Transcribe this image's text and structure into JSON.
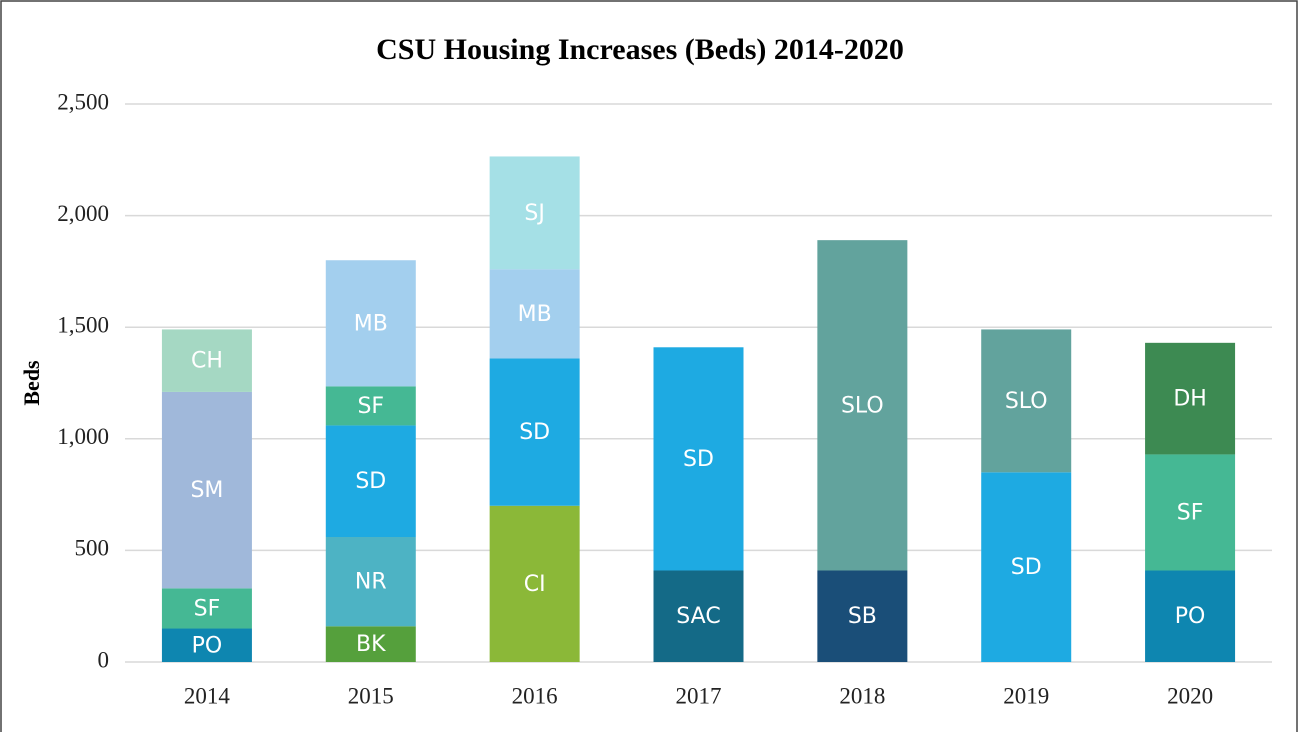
{
  "chart_data": {
    "type": "stacked-bar",
    "title": "CSU Housing Increases  (Beds) 2014-2020",
    "y_label": "Beds",
    "categories": [
      "2014",
      "2015",
      "2016",
      "2017",
      "2018",
      "2019",
      "2020"
    ],
    "bars": [
      {
        "segments": [
          {
            "name": "PO",
            "value": 150,
            "color": "#0e86b0"
          },
          {
            "name": "SF",
            "value": 180,
            "color": "#45b894"
          },
          {
            "name": "SM",
            "value": 880,
            "color": "#a0b8da"
          },
          {
            "name": "CH",
            "value": 280,
            "color": "#a5d8c3"
          }
        ]
      },
      {
        "segments": [
          {
            "name": "BK",
            "value": 160,
            "color": "#55a03c"
          },
          {
            "name": "NR",
            "value": 400,
            "color": "#4db3c4"
          },
          {
            "name": "SD",
            "value": 500,
            "color": "#1eaae2"
          },
          {
            "name": "SF",
            "value": 175,
            "color": "#45b894"
          },
          {
            "name": "MB",
            "value": 565,
            "color": "#a3cfee"
          }
        ]
      },
      {
        "segments": [
          {
            "name": "CI",
            "value": 700,
            "color": "#8bb838"
          },
          {
            "name": "SD",
            "value": 660,
            "color": "#1eaae2"
          },
          {
            "name": "MB",
            "value": 400,
            "color": "#a3cfee"
          },
          {
            "name": "SJ",
            "value": 505,
            "color": "#a5e0e6"
          }
        ]
      },
      {
        "segments": [
          {
            "name": "SAC",
            "value": 410,
            "color": "#146a87"
          },
          {
            "name": "SD",
            "value": 1000,
            "color": "#1eaae2"
          }
        ]
      },
      {
        "segments": [
          {
            "name": "SB",
            "value": 410,
            "color": "#1a4e78"
          },
          {
            "name": "SLO",
            "value": 1480,
            "color": "#62a39d"
          }
        ]
      },
      {
        "segments": [
          {
            "name": "SD",
            "value": 850,
            "color": "#1eaae2"
          },
          {
            "name": "SLO",
            "value": 640,
            "color": "#62a39d"
          }
        ]
      },
      {
        "segments": [
          {
            "name": "PO",
            "value": 410,
            "color": "#0e86b0"
          },
          {
            "name": "SF",
            "value": 520,
            "color": "#45b894"
          },
          {
            "name": "DH",
            "value": 500,
            "color": "#3d8a52"
          }
        ]
      }
    ],
    "ylim": [
      0,
      2500
    ],
    "yticks": [
      {
        "value": 0,
        "label": "0"
      },
      {
        "value": 500,
        "label": "500"
      },
      {
        "value": 1000,
        "label": "1,000"
      },
      {
        "value": 1500,
        "label": "1,500"
      },
      {
        "value": 2000,
        "label": "2,000"
      },
      {
        "value": 2500,
        "label": "2,500"
      }
    ],
    "grid": true
  }
}
